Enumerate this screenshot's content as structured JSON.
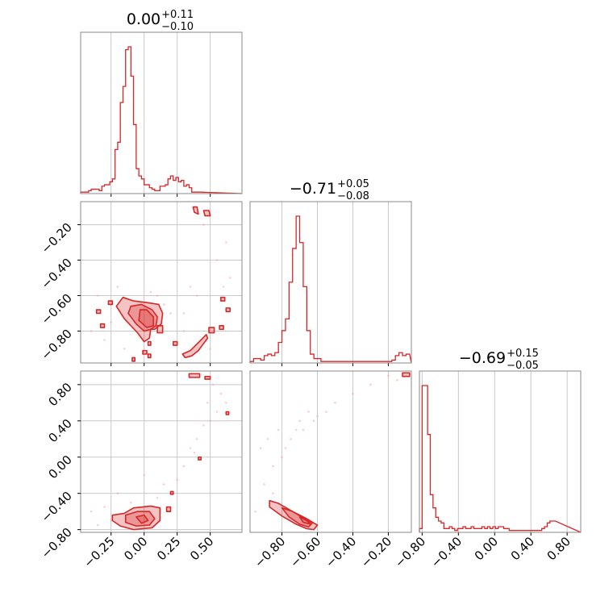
{
  "chart_data": [
    {
      "type": "histogram",
      "parameter_index": 0,
      "title": {
        "median": "0.00",
        "plus": "+0.11",
        "minus": "−0.10"
      },
      "xlim": [
        -0.48,
        0.74
      ],
      "xticks": [
        -0.25,
        0.0,
        0.25,
        0.5
      ],
      "bins": {
        "start": -0.48,
        "width": 0.02,
        "counts": [
          1,
          1,
          1,
          2,
          3,
          3,
          3,
          2,
          5,
          6,
          6,
          8,
          10,
          30,
          35,
          62,
          73,
          98,
          100,
          80,
          47,
          17,
          12,
          10,
          6,
          6,
          4,
          3,
          2,
          2,
          5,
          5,
          6,
          10,
          12,
          9,
          11,
          8,
          9,
          5,
          6,
          4,
          1,
          1,
          1
        ]
      }
    },
    {
      "type": "histogram",
      "parameter_index": 1,
      "title": {
        "median": "−0.71",
        "plus": "+0.05",
        "minus": "−0.08"
      },
      "xlim": [
        -0.98,
        -0.07
      ],
      "xticks": [
        -0.8,
        -0.6,
        -0.4,
        -0.2
      ],
      "bins": {
        "start": -0.98,
        "width": 0.02,
        "counts": [
          1,
          3,
          3,
          2,
          5,
          6,
          5,
          7,
          14,
          22,
          30,
          55,
          78,
          100,
          82,
          52,
          22,
          6,
          3,
          3,
          1,
          1,
          1,
          1,
          1,
          1,
          1,
          1,
          1,
          1,
          1,
          1,
          1,
          1,
          1,
          1,
          1,
          1,
          1,
          1,
          2,
          5,
          7,
          5,
          6
        ]
      }
    },
    {
      "type": "histogram",
      "parameter_index": 2,
      "title": {
        "median": "−0.69",
        "plus": "+0.15",
        "minus": "−0.05"
      },
      "xlim": [
        -0.83,
        0.95
      ],
      "xticks": [
        -0.8,
        -0.4,
        0.0,
        0.4,
        0.8
      ],
      "bins": {
        "start": -0.83,
        "width": 0.03,
        "counts": [
          2,
          78,
          78,
          52,
          20,
          13,
          8,
          6,
          5,
          2,
          2,
          3,
          2,
          1,
          2,
          2,
          3,
          2,
          2,
          3,
          2,
          2,
          2,
          3,
          2,
          3,
          2,
          3,
          2,
          3,
          3,
          2,
          2,
          1,
          1,
          1,
          1,
          1,
          1,
          1,
          1,
          1,
          1,
          1,
          1,
          2,
          3,
          5,
          6,
          6
        ]
      }
    },
    {
      "type": "scatter",
      "panel": "param0-vs-param1",
      "x_param": 0,
      "y_param": 1,
      "xlim": [
        -0.48,
        0.74
      ],
      "ylim": [
        -0.98,
        -0.07
      ],
      "yticks": [
        -0.8,
        -0.6,
        -0.4,
        -0.2
      ],
      "contours": [
        {
          "x": [
            -0.16,
            -0.08,
            0.03,
            0.11,
            0.14,
            0.13,
            0.08,
            0.05,
            0.04,
            0.0,
            -0.05,
            -0.15,
            -0.21,
            -0.16
          ],
          "y": [
            -0.61,
            -0.63,
            -0.64,
            -0.65,
            -0.7,
            -0.76,
            -0.79,
            -0.79,
            -0.84,
            -0.86,
            -0.81,
            -0.73,
            -0.66,
            -0.61
          ]
        },
        {
          "x": [
            -0.1,
            -0.02,
            0.06,
            0.1,
            0.09,
            0.05,
            0.0,
            -0.06,
            -0.12,
            -0.1
          ],
          "y": [
            -0.66,
            -0.65,
            -0.68,
            -0.72,
            -0.77,
            -0.79,
            -0.8,
            -0.76,
            -0.7,
            -0.66
          ]
        },
        {
          "x": [
            -0.03,
            0.02,
            0.07,
            0.07,
            0.02,
            -0.04,
            -0.03
          ],
          "y": [
            -0.68,
            -0.68,
            -0.72,
            -0.77,
            -0.78,
            -0.74,
            -0.68
          ]
        },
        {
          "x": [
            0.29,
            0.35,
            0.39,
            0.43,
            0.47,
            0.48,
            0.45,
            0.41,
            0.36,
            0.31,
            0.29
          ],
          "y": [
            -0.93,
            -0.91,
            -0.88,
            -0.85,
            -0.82,
            -0.84,
            -0.87,
            -0.91,
            -0.94,
            -0.95,
            -0.93
          ]
        },
        {
          "x": [
            0.37,
            0.4,
            0.41,
            0.38,
            0.37
          ],
          "y": [
            -0.1,
            -0.1,
            -0.14,
            -0.13,
            -0.1
          ]
        },
        {
          "x": [
            0.45,
            0.49,
            0.5,
            0.46,
            0.45
          ],
          "y": [
            -0.12,
            -0.12,
            -0.15,
            -0.15,
            -0.12
          ]
        },
        {
          "x": [
            0.49,
            0.53,
            0.53,
            0.49,
            0.49
          ],
          "y": [
            -0.78,
            -0.78,
            -0.81,
            -0.81,
            -0.78
          ]
        },
        {
          "x": [
            0.57,
            0.6,
            0.6,
            0.57,
            0.57
          ],
          "y": [
            -0.77,
            -0.77,
            -0.79,
            -0.79,
            -0.77
          ]
        },
        {
          "x": [
            0.62,
            0.65,
            0.65,
            0.62,
            0.62
          ],
          "y": [
            -0.67,
            -0.67,
            -0.69,
            -0.69,
            -0.67
          ]
        },
        {
          "x": [
            0.58,
            0.61,
            0.61,
            0.58,
            0.58
          ],
          "y": [
            -0.61,
            -0.61,
            -0.63,
            -0.63,
            -0.61
          ]
        },
        {
          "x": [
            -0.36,
            -0.33,
            -0.33,
            -0.36,
            -0.36
          ],
          "y": [
            -0.68,
            -0.68,
            -0.7,
            -0.7,
            -0.68
          ]
        },
        {
          "x": [
            -0.33,
            -0.3,
            -0.3,
            -0.33,
            -0.33
          ],
          "y": [
            -0.76,
            -0.76,
            -0.78,
            -0.78,
            -0.76
          ]
        },
        {
          "x": [
            -0.27,
            -0.24,
            -0.24,
            -0.27,
            -0.27
          ],
          "y": [
            -0.63,
            -0.63,
            -0.65,
            -0.65,
            -0.63
          ]
        },
        {
          "x": [
            0.1,
            0.14,
            0.14,
            0.1,
            0.1
          ],
          "y": [
            -0.77,
            -0.77,
            -0.81,
            -0.81,
            -0.77
          ]
        },
        {
          "x": [
            0.22,
            0.25,
            0.25,
            0.22,
            0.22
          ],
          "y": [
            -0.86,
            -0.86,
            -0.88,
            -0.88,
            -0.86
          ]
        },
        {
          "x": [
            -0.01,
            0.02,
            0.02,
            -0.01,
            -0.01
          ],
          "y": [
            -0.91,
            -0.91,
            -0.93,
            -0.93,
            -0.91
          ]
        },
        {
          "x": [
            0.03,
            0.05,
            0.05,
            0.03,
            0.03
          ],
          "y": [
            -0.93,
            -0.93,
            -0.95,
            -0.95,
            -0.93
          ]
        },
        {
          "x": [
            0.03,
            0.05,
            0.05,
            0.03,
            0.03
          ],
          "y": [
            -0.86,
            -0.86,
            -0.88,
            -0.88,
            -0.86
          ]
        },
        {
          "x": [
            -0.09,
            -0.07,
            -0.07,
            -0.09,
            -0.09
          ],
          "y": [
            -0.95,
            -0.95,
            -0.97,
            -0.97,
            -0.95
          ]
        }
      ],
      "points": {
        "x": [
          -0.4,
          -0.35,
          -0.3,
          -0.2,
          -0.15,
          0.05,
          0.1,
          0.2,
          0.3,
          0.35,
          0.55,
          0.6,
          0.62,
          0.45,
          0.3,
          0.15,
          0.65,
          0.5,
          -0.25,
          0.4
        ],
        "y": [
          -0.8,
          -0.6,
          -0.85,
          -0.55,
          -0.9,
          -0.58,
          -0.6,
          -0.7,
          -0.8,
          -0.55,
          -0.4,
          -0.55,
          -0.3,
          -0.2,
          -0.7,
          -0.65,
          -0.5,
          -0.9,
          -0.75,
          -0.6
        ]
      }
    },
    {
      "type": "scatter",
      "panel": "param0-vs-param2",
      "x_param": 0,
      "y_param": 2,
      "xlim": [
        -0.48,
        0.74
      ],
      "ylim": [
        -0.83,
        0.95
      ],
      "yticks": [
        -0.8,
        -0.4,
        0.0,
        0.4,
        0.8
      ],
      "contours": [
        {
          "x": [
            -0.24,
            -0.15,
            -0.08,
            0.05,
            0.12,
            0.12,
            0.06,
            -0.08,
            -0.18,
            -0.24,
            -0.24
          ],
          "y": [
            -0.64,
            -0.62,
            -0.56,
            -0.54,
            -0.56,
            -0.7,
            -0.78,
            -0.8,
            -0.76,
            -0.7,
            -0.64
          ]
        },
        {
          "x": [
            -0.14,
            -0.05,
            0.04,
            0.08,
            0.04,
            -0.06,
            -0.14,
            -0.14
          ],
          "y": [
            -0.64,
            -0.6,
            -0.6,
            -0.68,
            -0.75,
            -0.76,
            -0.72,
            -0.64
          ]
        },
        {
          "x": [
            -0.06,
            0.0,
            0.03,
            -0.02,
            -0.06
          ],
          "y": [
            -0.66,
            -0.64,
            -0.7,
            -0.73,
            -0.66
          ]
        },
        {
          "x": [
            0.17,
            0.2,
            0.2,
            0.17,
            0.17
          ],
          "y": [
            -0.55,
            -0.55,
            -0.6,
            -0.6,
            -0.55
          ]
        },
        {
          "x": [
            0.34,
            0.42,
            0.42,
            0.34,
            0.34
          ],
          "y": [
            0.92,
            0.92,
            0.88,
            0.88,
            0.92
          ]
        },
        {
          "x": [
            0.46,
            0.5,
            0.5,
            0.46,
            0.46
          ],
          "y": [
            0.89,
            0.89,
            0.86,
            0.86,
            0.89
          ]
        },
        {
          "x": [
            0.62,
            0.64,
            0.64,
            0.62,
            0.62
          ],
          "y": [
            0.5,
            0.5,
            0.47,
            0.47,
            0.5
          ]
        },
        {
          "x": [
            0.41,
            0.43,
            0.43,
            0.41,
            0.41
          ],
          "y": [
            0.0,
            0.0,
            -0.03,
            -0.03,
            0.0
          ]
        },
        {
          "x": [
            0.2,
            0.22,
            0.22,
            0.2,
            0.2
          ],
          "y": [
            -0.38,
            -0.38,
            -0.41,
            -0.41,
            -0.38
          ]
        }
      ],
      "points": {
        "x": [
          -0.4,
          -0.3,
          -0.25,
          -0.2,
          -0.1,
          0.0,
          0.15,
          0.2,
          0.25,
          0.3,
          0.35,
          0.4,
          0.45,
          0.5,
          0.55,
          0.58,
          0.62,
          0.52,
          0.48,
          0.38,
          0.1,
          -0.35
        ],
        "y": [
          -0.6,
          -0.55,
          -0.7,
          -0.4,
          -0.5,
          -0.2,
          -0.3,
          -0.4,
          -0.25,
          -0.1,
          0.1,
          0.2,
          0.35,
          0.4,
          0.5,
          0.7,
          0.6,
          0.8,
          0.6,
          0.05,
          -0.45,
          -0.75
        ]
      }
    },
    {
      "type": "scatter",
      "panel": "param1-vs-param2",
      "x_param": 1,
      "y_param": 2,
      "xlim": [
        -0.98,
        -0.07
      ],
      "ylim": [
        -0.83,
        0.95
      ],
      "yticks": [],
      "contours": [
        {
          "x": [
            -0.87,
            -0.82,
            -0.74,
            -0.66,
            -0.6,
            -0.62,
            -0.66,
            -0.72,
            -0.8,
            -0.87,
            -0.87
          ],
          "y": [
            -0.48,
            -0.51,
            -0.6,
            -0.68,
            -0.75,
            -0.8,
            -0.79,
            -0.74,
            -0.65,
            -0.55,
            -0.48
          ]
        },
        {
          "x": [
            -0.8,
            -0.74,
            -0.68,
            -0.63,
            -0.65,
            -0.7,
            -0.76,
            -0.8
          ],
          "y": [
            -0.56,
            -0.6,
            -0.67,
            -0.73,
            -0.77,
            -0.74,
            -0.66,
            -0.56
          ]
        },
        {
          "x": [
            -0.7,
            -0.66,
            -0.64,
            -0.68,
            -0.7
          ],
          "y": [
            -0.66,
            -0.7,
            -0.74,
            -0.72,
            -0.66
          ]
        },
        {
          "x": [
            -0.12,
            -0.08,
            -0.08,
            -0.12,
            -0.12
          ],
          "y": [
            0.93,
            0.93,
            0.89,
            0.89,
            0.93
          ]
        }
      ],
      "points": {
        "x": [
          -0.95,
          -0.9,
          -0.88,
          -0.85,
          -0.82,
          -0.8,
          -0.78,
          -0.75,
          -0.72,
          -0.7,
          -0.68,
          -0.65,
          -0.62,
          -0.6,
          -0.55,
          -0.5,
          -0.4,
          -0.3,
          -0.2,
          -0.15,
          -0.1,
          -0.85,
          -0.92
        ],
        "y": [
          -0.6,
          -0.3,
          0.2,
          -0.1,
          0.3,
          0.0,
          0.1,
          0.2,
          0.3,
          0.4,
          0.3,
          0.5,
          0.4,
          0.45,
          0.5,
          0.6,
          0.7,
          0.8,
          0.9,
          0.85,
          0.9,
          -0.4,
          0.1
        ]
      }
    }
  ]
}
